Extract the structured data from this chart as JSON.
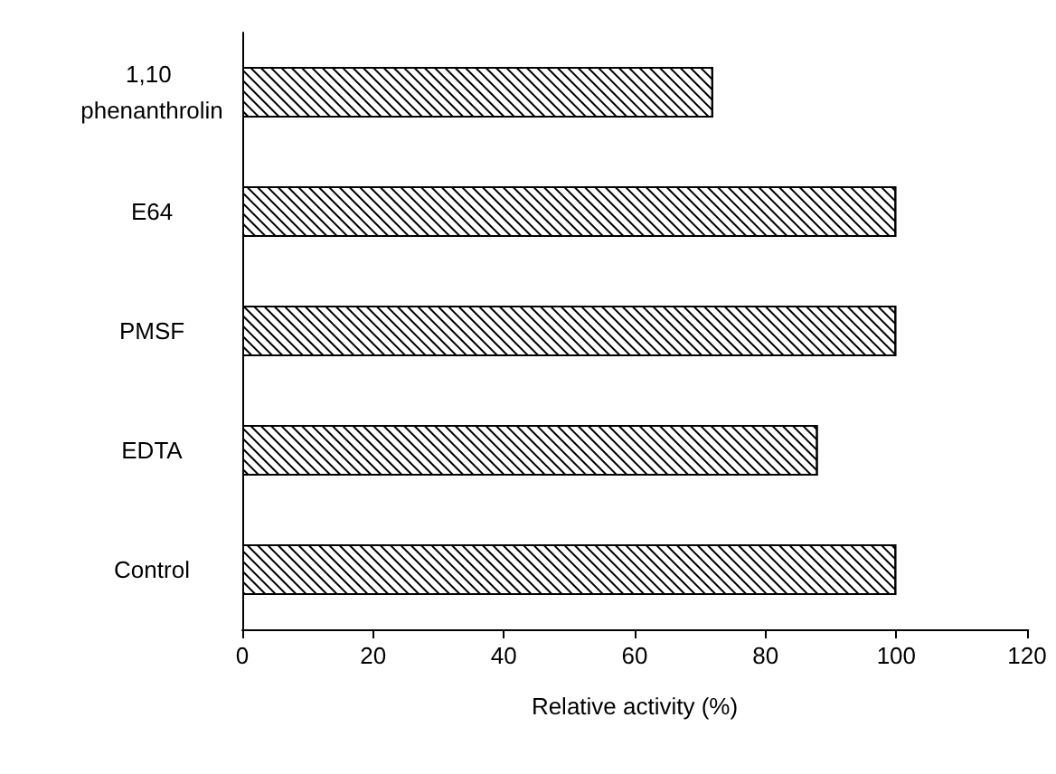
{
  "chart_data": {
    "type": "bar",
    "orientation": "horizontal",
    "xlabel": "Relative activity (%)",
    "categories": [
      "1,10 phenanthrolin",
      "E64",
      "PMSF",
      "EDTA",
      "Control"
    ],
    "values": [
      72,
      100,
      100,
      88,
      100
    ],
    "color": "#000000",
    "xlim": [
      0,
      120
    ],
    "xticks": [
      0,
      20,
      40,
      60,
      80,
      100,
      120
    ],
    "grid": false
  }
}
